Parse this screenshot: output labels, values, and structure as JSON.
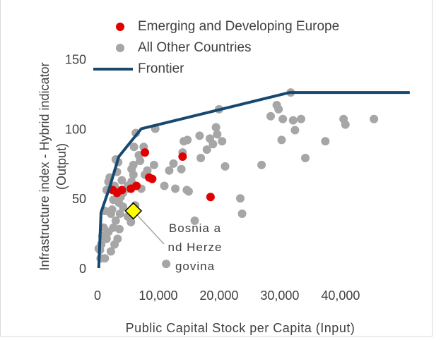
{
  "chart_data": {
    "type": "scatter",
    "xlabel": "Public Capital Stock per Capita (Input)",
    "ylabel": [
      "Infrastructure index - Hybrid indicator",
      "(Output)"
    ],
    "xlim": [
      0,
      52000
    ],
    "ylim": [
      0,
      160
    ],
    "xticks": [
      0,
      {
        "value": 10000,
        "label": "10,000"
      },
      {
        "value": 20000,
        "label": "20,000"
      },
      {
        "value": 30000,
        "label": "30,000"
      },
      {
        "value": 40000,
        "label": "40,000"
      }
    ],
    "yticks": [
      0,
      50,
      100,
      150
    ],
    "grid": false,
    "legend": "top",
    "series": [
      {
        "name": "Emerging and Developing Europe",
        "color": "#e00000",
        "x": [
          14000,
          18600,
          7800,
          8500,
          9000,
          5500,
          4000,
          3200,
          2500,
          6400
        ],
        "values": [
          81,
          52,
          84,
          66,
          65,
          58,
          57,
          55,
          57,
          60
        ]
      },
      {
        "name": "All Other Countries",
        "color": "#a6a6a6",
        "x": [
          31800,
          29500,
          29800,
          28500,
          30500,
          32200,
          33500,
          30300,
          32500,
          34200,
          40500,
          40800,
          45500,
          37500,
          27000,
          20000,
          19500,
          19700,
          18500,
          18000,
          19000,
          16800,
          17000,
          20500,
          21000,
          23500,
          23800,
          16000,
          14800,
          14200,
          14000,
          13800,
          12500,
          12800,
          14700,
          15000,
          11800,
          11000,
          11300,
          9500,
          9300,
          8200,
          7800,
          7000,
          7600,
          6800,
          6300,
          6000,
          5900,
          5600,
          5900,
          5600,
          5000,
          4800,
          4200,
          4000,
          3800,
          3500,
          3400,
          3000,
          3200,
          2800,
          2600,
          2400,
          2200,
          2000,
          1800,
          1500,
          1200,
          1000,
          800,
          600,
          400,
          200,
          1500,
          1800,
          2200,
          2600,
          3000,
          3300,
          3700,
          4200,
          5000,
          5500,
          6200,
          7200,
          2800,
          1200,
          500,
          3600
        ],
        "values": [
          127,
          118,
          115,
          110,
          108,
          107,
          108,
          93,
          100,
          80,
          108,
          104,
          108,
          92,
          75,
          115,
          102,
          97,
          94,
          86,
          90,
          96,
          80,
          92,
          74,
          51,
          40,
          35,
          93,
          92,
          84,
          72,
          76,
          58,
          57,
          56,
          71,
          60,
          4,
          101,
          75,
          71,
          68,
          78,
          88,
          82,
          98,
          88,
          75,
          72,
          68,
          63,
          60,
          58,
          55,
          64,
          52,
          48,
          77,
          79,
          70,
          60,
          50,
          43,
          40,
          66,
          63,
          57,
          42,
          30,
          24,
          18,
          14,
          15,
          22,
          27,
          13,
          30,
          35,
          22,
          40,
          45,
          38,
          34,
          46,
          58,
          18,
          8,
          8,
          29
        ]
      },
      {
        "name": "Frontier",
        "color": "#17486f",
        "type": "line",
        "x": [
          200,
          580,
          2000,
          3500,
          7200,
          31600,
          51400
        ],
        "values": [
          1,
          41,
          59,
          81,
          101,
          127,
          127
        ]
      }
    ],
    "highlight": {
      "x": 5900,
      "y": 42,
      "color": "#ffff00",
      "label": "Bosnia and Herzegovina"
    }
  }
}
